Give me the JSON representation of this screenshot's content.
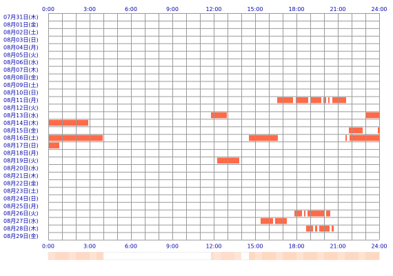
{
  "chart_data": {
    "type": "heatmap",
    "x_ticks": [
      "0:00",
      "3:00",
      "6:00",
      "9:00",
      "12:00",
      "15:00",
      "18:00",
      "21:00",
      "24:00"
    ],
    "xlim_hours": [
      0,
      24
    ],
    "grid": true,
    "rows": [
      "07月31日(木)",
      "08月01日(金)",
      "08月02日(土)",
      "08月03日(日)",
      "08月04日(月)",
      "08月05日(火)",
      "08月06日(水)",
      "08月07日(木)",
      "08月08日(金)",
      "08月09日(土)",
      "08月10日(日)",
      "08月11日(月)",
      "08月12日(火)",
      "08月13日(水)",
      "08月14日(木)",
      "08月15日(金)",
      "08月16日(土)",
      "08月17日(日)",
      "08月18日(月)",
      "08月19日(火)",
      "08月20日(水)",
      "08月21日(木)",
      "08月22日(金)",
      "08月23日(土)",
      "08月24日(日)",
      "08月25日(月)",
      "08月26日(火)",
      "08月27日(水)",
      "08月28日(木)",
      "08月29日(金)"
    ],
    "intervals": [
      {
        "row": 11,
        "start": 16.6,
        "end": 17.75
      },
      {
        "row": 11,
        "start": 17.95,
        "end": 18.85
      },
      {
        "row": 11,
        "start": 19.05,
        "end": 19.8
      },
      {
        "row": 11,
        "start": 19.95,
        "end": 20.15
      },
      {
        "row": 11,
        "start": 20.3,
        "end": 20.4
      },
      {
        "row": 11,
        "start": 20.6,
        "end": 21.6
      },
      {
        "row": 13,
        "start": 11.8,
        "end": 12.95
      },
      {
        "row": 13,
        "start": 23.05,
        "end": 24.0
      },
      {
        "row": 14,
        "start": 0.0,
        "end": 2.9
      },
      {
        "row": 15,
        "start": 21.8,
        "end": 22.8
      },
      {
        "row": 15,
        "start": 23.9,
        "end": 24.0
      },
      {
        "row": 16,
        "start": 0.0,
        "end": 3.95
      },
      {
        "row": 16,
        "start": 14.55,
        "end": 16.65
      },
      {
        "row": 16,
        "start": 21.55,
        "end": 21.65
      },
      {
        "row": 16,
        "start": 21.85,
        "end": 24.0
      },
      {
        "row": 17,
        "start": 0.0,
        "end": 0.8
      },
      {
        "row": 19,
        "start": 12.25,
        "end": 13.85
      },
      {
        "row": 26,
        "start": 17.85,
        "end": 18.4
      },
      {
        "row": 26,
        "start": 18.55,
        "end": 18.65
      },
      {
        "row": 26,
        "start": 18.8,
        "end": 20.0
      },
      {
        "row": 26,
        "start": 20.15,
        "end": 20.45
      },
      {
        "row": 27,
        "start": 15.4,
        "end": 16.3
      },
      {
        "row": 27,
        "start": 16.45,
        "end": 17.3
      },
      {
        "row": 28,
        "start": 18.7,
        "end": 19.2
      },
      {
        "row": 28,
        "start": 19.35,
        "end": 19.5
      },
      {
        "row": 28,
        "start": 19.65,
        "end": 20.4
      },
      {
        "row": 28,
        "start": 20.55,
        "end": 20.7
      }
    ],
    "bar_color": "#ff6a48",
    "grid_color": "#999999",
    "summary_strip": {
      "base_color": "#ffffff",
      "density_color": "#ffc7a8",
      "density": [
        {
          "start": 0.0,
          "end": 4.0,
          "level": 0.45
        },
        {
          "start": 11.8,
          "end": 14.0,
          "level": 0.35
        },
        {
          "start": 14.55,
          "end": 24.0,
          "level": 0.5
        }
      ]
    }
  }
}
